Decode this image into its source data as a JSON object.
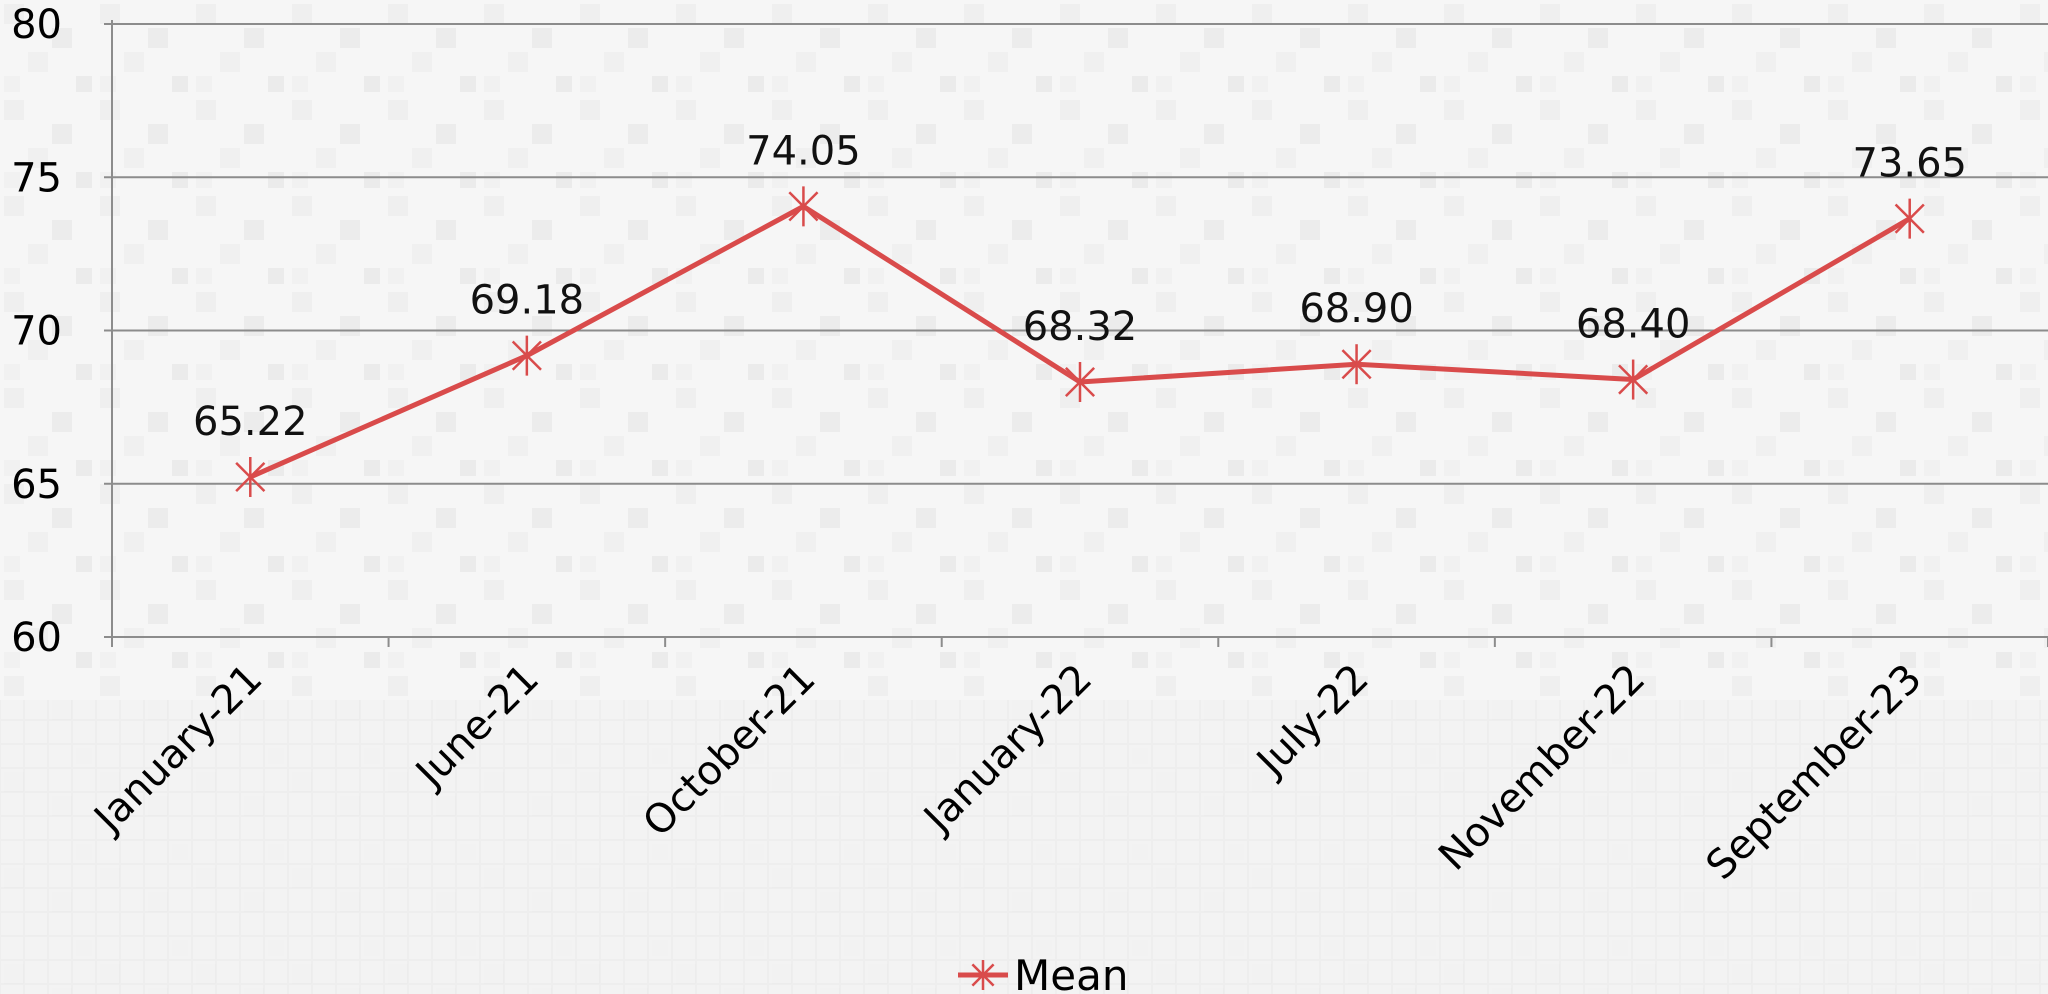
{
  "chart_data": {
    "type": "line",
    "categories": [
      "January-21",
      "June-21",
      "October-21",
      "January-22",
      "July-22",
      "November-22",
      "September-23"
    ],
    "series": [
      {
        "name": "Mean",
        "values": [
          65.22,
          69.18,
          74.05,
          68.32,
          68.9,
          68.4,
          73.65
        ],
        "data_labels": [
          "65.22",
          "69.18",
          "74.05",
          "68.32",
          "68.90",
          "68.40",
          "73.65"
        ],
        "color": "#d94b4b",
        "marker": "asterisk"
      }
    ],
    "ylim": [
      60,
      80
    ],
    "yticks": [
      60,
      65,
      70,
      75,
      80
    ],
    "ytick_labels": [
      "60",
      "65",
      "70",
      "75",
      "80"
    ],
    "grid": "horizontal",
    "legend_position": "bottom-center",
    "title": "",
    "xlabel": "",
    "ylabel": "",
    "colors": {
      "gridline": "#8c8c8c",
      "background": "#f5f5f5"
    }
  }
}
